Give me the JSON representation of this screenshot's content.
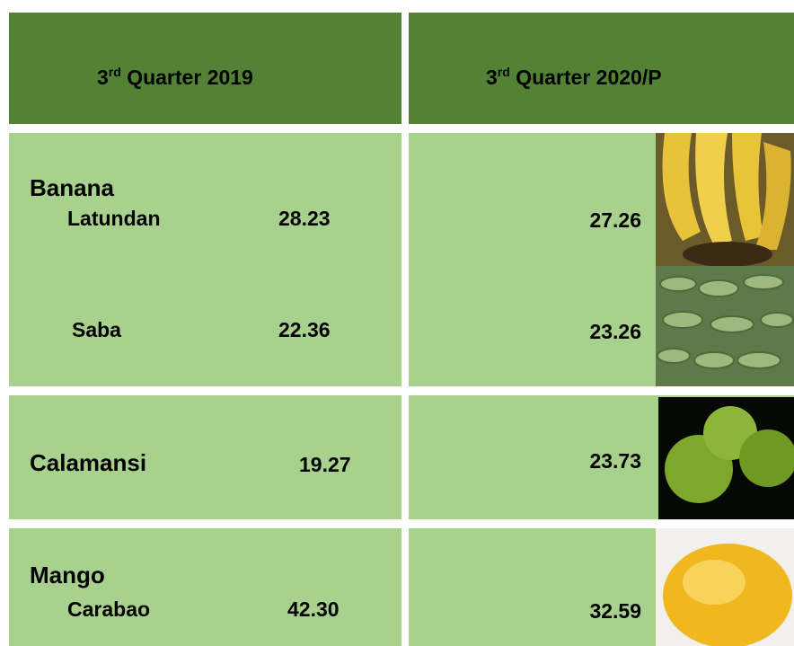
{
  "header": {
    "left": {
      "number": "3",
      "ordinal": "rd",
      "rest": "Quarter 2019"
    },
    "right": {
      "number": "3",
      "ordinal": "rd",
      "rest": "Quarter 2020/P"
    }
  },
  "rows": [
    {
      "group": "Banana",
      "items": [
        {
          "name": "Latundan",
          "q2019": "28.23",
          "q2020": "27.26"
        },
        {
          "name": "Saba",
          "q2019": "22.36",
          "q2020": "23.26"
        }
      ]
    },
    {
      "group": "Calamansi",
      "items": [
        {
          "q2019": "19.27",
          "q2020": "23.73"
        }
      ]
    },
    {
      "group": "Mango",
      "items": [
        {
          "name": "Carabao",
          "q2019": "42.30",
          "q2020": "32.59"
        }
      ]
    }
  ]
}
